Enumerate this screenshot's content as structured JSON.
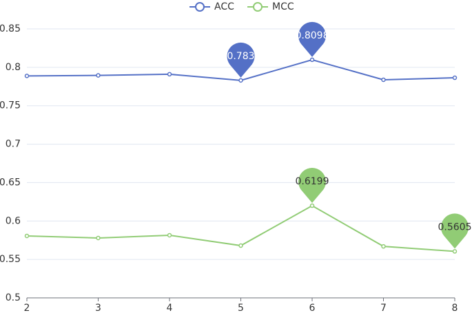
{
  "chart_data": {
    "type": "line",
    "x": [
      2,
      3,
      4,
      5,
      6,
      7,
      8
    ],
    "xlim": [
      2,
      8
    ],
    "xticks": [
      2,
      3,
      4,
      5,
      6,
      7,
      8
    ],
    "ylim": [
      0.5,
      0.85
    ],
    "yticks": [
      0.5,
      0.55,
      0.6,
      0.65,
      0.7,
      0.75,
      0.8,
      0.85
    ],
    "grid": true,
    "legend": "top",
    "series": [
      {
        "name": "ACC",
        "color": "#5470c6",
        "values": [
          0.7888,
          0.7895,
          0.791,
          0.783,
          0.8098,
          0.7838,
          0.7864
        ],
        "marked": [
          false,
          false,
          false,
          true,
          true,
          false,
          false
        ]
      },
      {
        "name": "MCC",
        "color": "#91cc75",
        "values": [
          0.5806,
          0.5779,
          0.5815,
          0.568,
          0.6199,
          0.567,
          0.5605
        ],
        "marked": [
          false,
          false,
          false,
          false,
          true,
          false,
          true
        ]
      }
    ]
  }
}
